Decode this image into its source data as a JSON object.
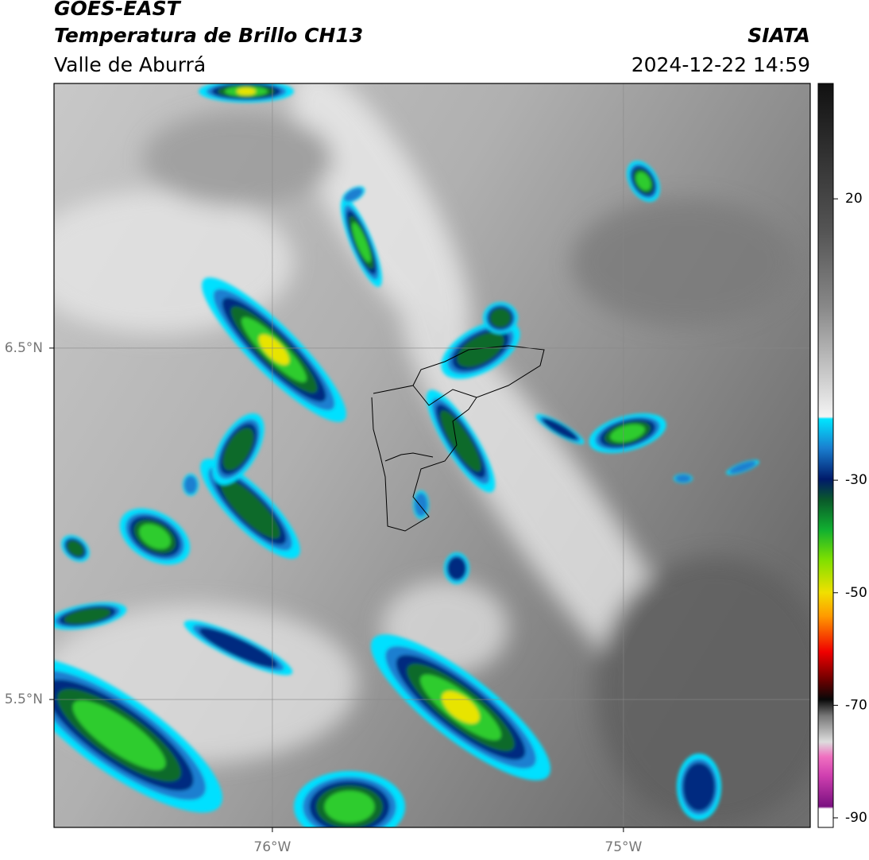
{
  "header": {
    "title": "GOES-EAST",
    "subtitle": "Temperatura de Brillo CH13",
    "region": "Valle de Aburrá",
    "source": "SIATA",
    "datetime": "2024-12-22 14:59"
  },
  "map": {
    "xlim": [
      -76.622,
      -74.468
    ],
    "ylim": [
      5.136,
      7.253
    ],
    "xticks": [
      {
        "value": -76,
        "label": "76°W"
      },
      {
        "value": -75,
        "label": "75°W"
      }
    ],
    "yticks": [
      {
        "value": 6.5,
        "label": "6.5°N"
      },
      {
        "value": 5.5,
        "label": "5.5°N"
      }
    ]
  },
  "colorbar": {
    "clim": [
      -91.7,
      40.5
    ],
    "ticks": [
      20,
      -30,
      -50,
      -70,
      -90
    ]
  }
}
